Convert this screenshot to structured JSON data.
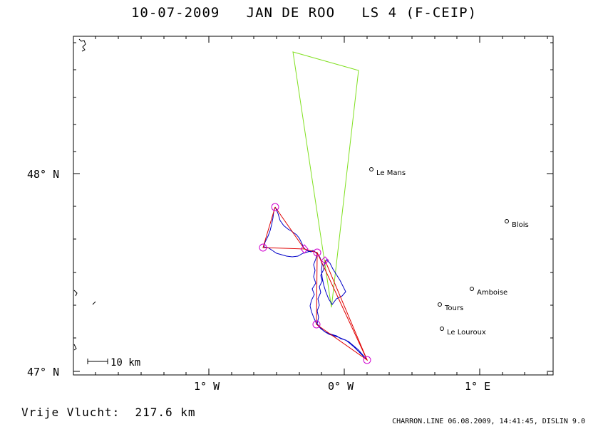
{
  "header": {
    "title": "10-07-2009   JAN DE ROO   LS 4 (F-CEIP)"
  },
  "map": {
    "lat_labels": [
      "48° N",
      "47° N"
    ],
    "lon_labels": [
      "1° W",
      "0° W",
      "1° E"
    ],
    "scale_label": "10 km",
    "towns": [
      {
        "name": "Le Mans"
      },
      {
        "name": "Blois"
      },
      {
        "name": "Amboise"
      },
      {
        "name": "Tours"
      },
      {
        "name": "Le Louroux"
      }
    ],
    "colors": {
      "track": "#0000c8",
      "task": "#e00000",
      "airspace": "#80e020",
      "turnpoint": "#d000d0"
    }
  },
  "footer": {
    "distance": "Vrije Vlucht:  217.6 km",
    "info": "CHARRON.LINE 06.08.2009, 14:41:45, DISLIN 9.0"
  }
}
